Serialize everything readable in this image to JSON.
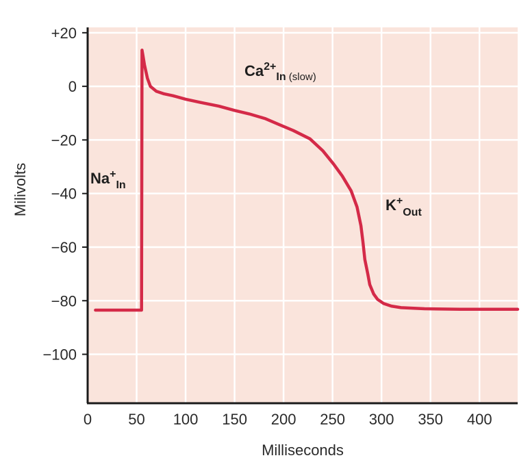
{
  "chart_data": {
    "type": "line",
    "title": "",
    "xlabel": "Milliseconds",
    "ylabel": "Milivolts",
    "xlim": [
      0,
      439
    ],
    "ylim": [
      -118,
      22
    ],
    "grid": true,
    "x_ticks": [
      0,
      50,
      100,
      150,
      200,
      250,
      300,
      350,
      400
    ],
    "x_tick_labels": [
      "0",
      "50",
      "100",
      "150",
      "200",
      "250",
      "300",
      "350",
      "400"
    ],
    "y_ticks": [
      20,
      0,
      -20,
      -40,
      -60,
      -80,
      -100
    ],
    "y_tick_labels": [
      "+20",
      "0",
      "−20",
      "−40",
      "−60",
      "−80",
      "−100"
    ],
    "colors": {
      "line": "#d42a48",
      "plot_background": "#fae4dc",
      "grid": "#ffffff",
      "axis": "#1a1a1a"
    },
    "series": [
      {
        "x": [
          8,
          55,
          55.5,
          56,
          58,
          61,
          64,
          70,
          78,
          87,
          100,
          115,
          134,
          150,
          165,
          181,
          195,
          210,
          227,
          240,
          251,
          260,
          269,
          275,
          279,
          281,
          283,
          286,
          288,
          292,
          296,
          302,
          310,
          320,
          344,
          380,
          439
        ],
        "y": [
          -83.5,
          -83.5,
          13.5,
          12.5,
          8,
          3,
          0,
          -1.8,
          -2.8,
          -3.5,
          -4.8,
          -6,
          -7.4,
          -9,
          -10.3,
          -12,
          -14.2,
          -16.5,
          -19.6,
          -24,
          -29,
          -33.5,
          -39,
          -45,
          -52,
          -58,
          -64.6,
          -70,
          -74,
          -77.5,
          -79.5,
          -81,
          -82,
          -82.6,
          -83,
          -83.2,
          -83.2
        ]
      }
    ],
    "annotations": [
      {
        "main": "Na",
        "sup": "+",
        "sub": "In",
        "extra": ""
      },
      {
        "main": "Ca",
        "sup": "2+",
        "sub": "In",
        "extra": " (slow)"
      },
      {
        "main": "K",
        "sup": "+",
        "sub": "Out",
        "extra": ""
      }
    ]
  }
}
